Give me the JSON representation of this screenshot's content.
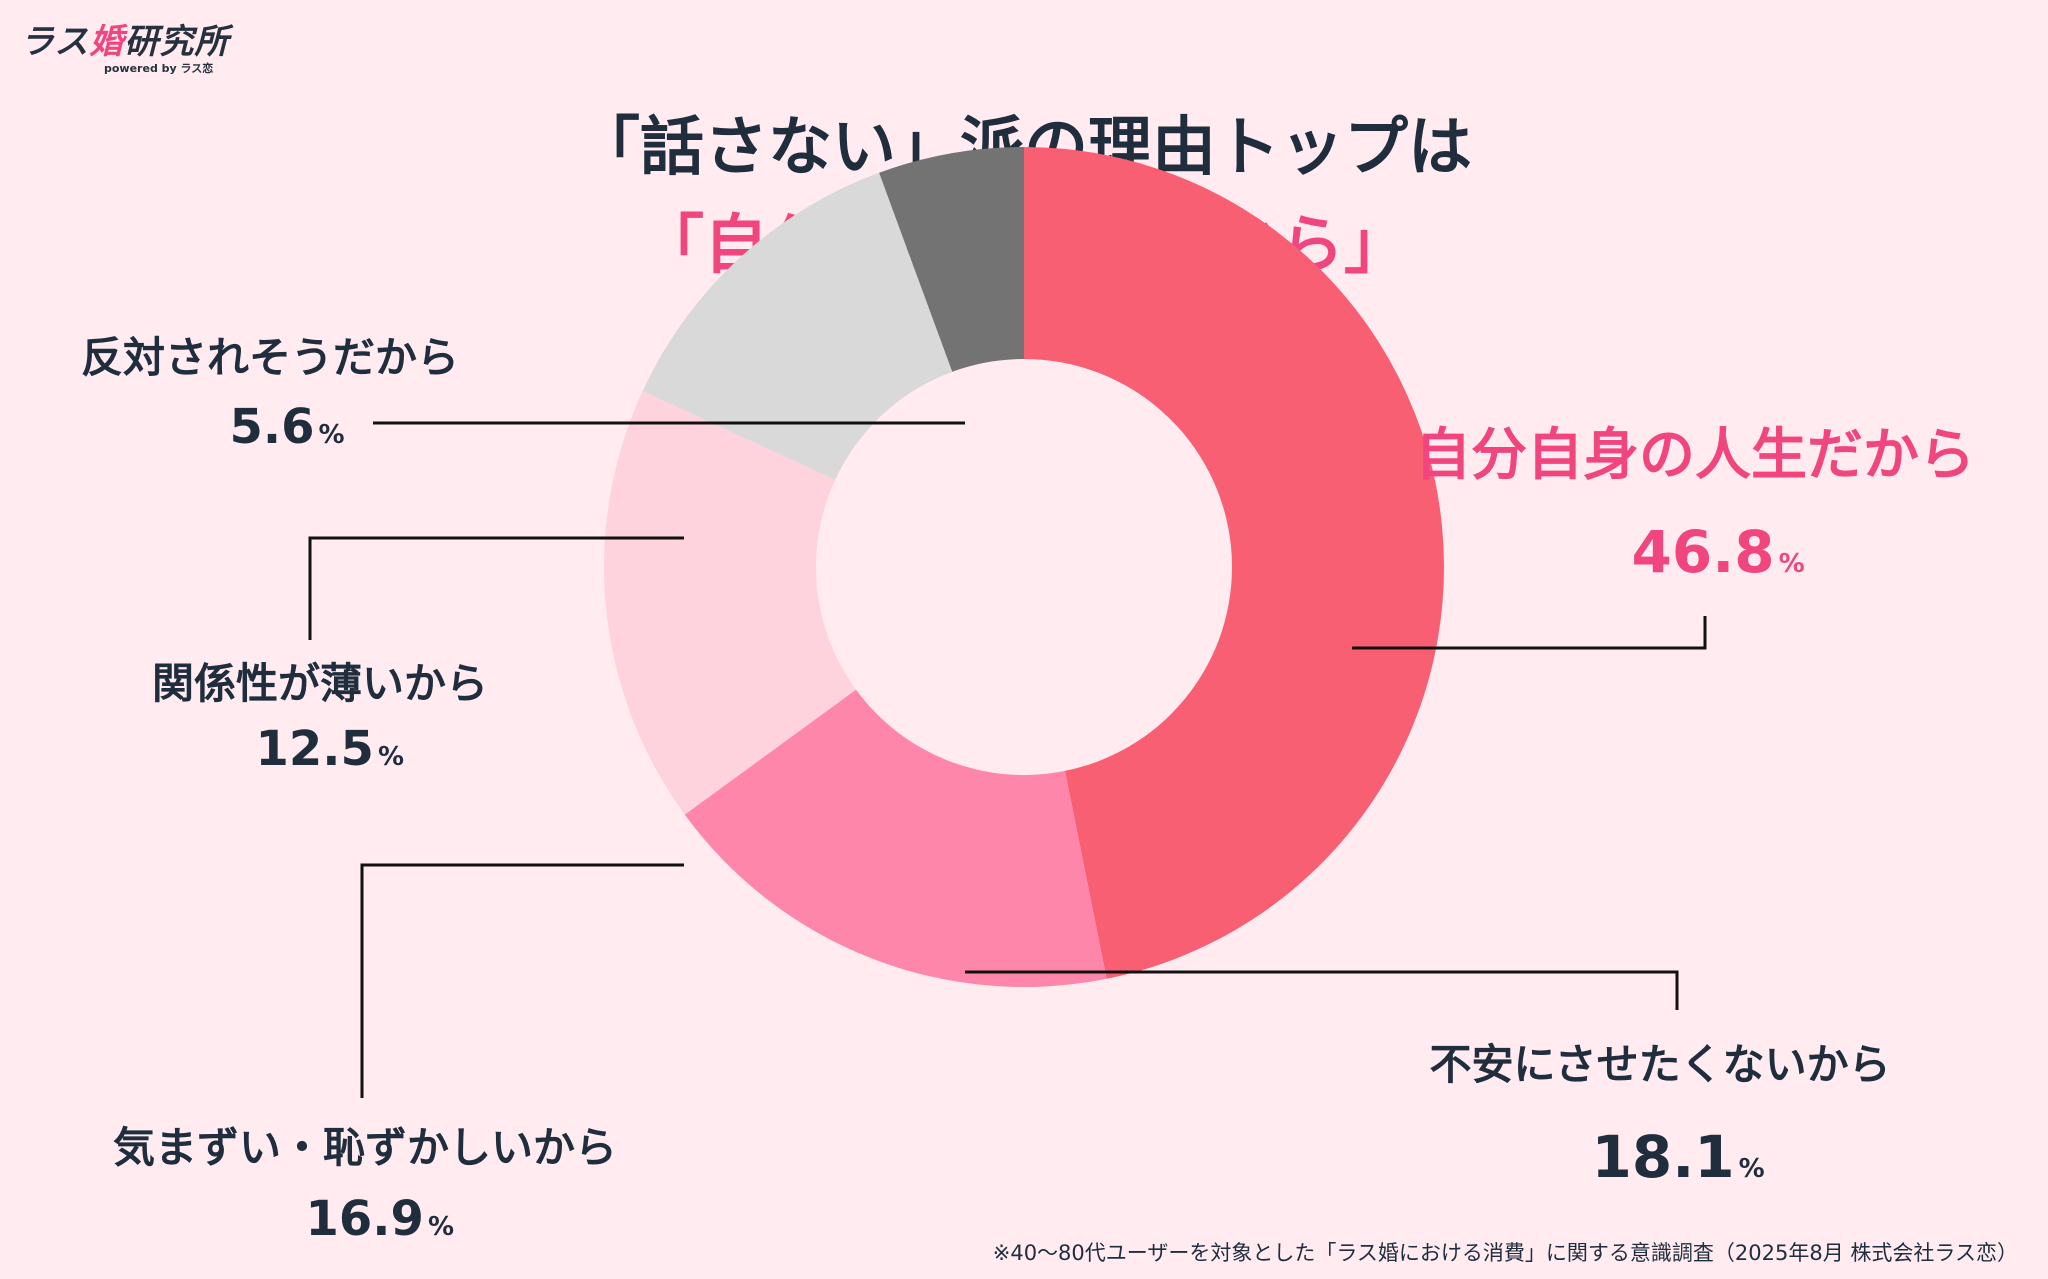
{
  "logo": {
    "main_prefix": "ラス",
    "main_accent": "婚",
    "main_suffix": "研究所",
    "sub": "powered by ラス恋"
  },
  "title": {
    "line1": "「話さない」派の理由トップは",
    "line2": "「自分自身の人生だから」"
  },
  "chart_data": {
    "type": "pie",
    "donut": true,
    "unit": "%",
    "slices": [
      {
        "label": "自分自身の人生だから",
        "value": 46.8,
        "value_text": "46.8",
        "color": "#f95f72"
      },
      {
        "label": "不安にさせたくないから",
        "value": 18.1,
        "value_text": "18.1",
        "color": "#ff86ab"
      },
      {
        "label": "気まずい・恥ずかしいから",
        "value": 16.9,
        "value_text": "16.9",
        "color": "#ffd3de"
      },
      {
        "label": "関係性が薄いから",
        "value": 12.5,
        "value_text": "12.5",
        "color": "#d9d9d9"
      },
      {
        "label": "反対されそうだから",
        "value": 5.6,
        "value_text": "5.6",
        "color": "#737373"
      }
    ]
  },
  "footnote": "※40〜80代ユーザーを対象とした「ラス婚における消費」に関する意識調査（2025年8月 株式会社ラス恋）"
}
